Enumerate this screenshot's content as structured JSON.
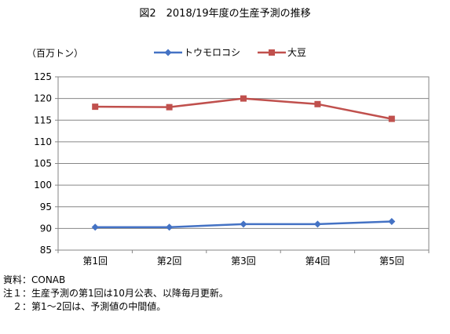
{
  "chart_data": {
    "type": "line",
    "title": "図2　2018/19年度の生産予測の推移",
    "ylabel": "（百万トン）",
    "xlabel": "",
    "categories": [
      "第1回",
      "第2回",
      "第3回",
      "第4回",
      "第5回"
    ],
    "ylim": [
      85,
      125
    ],
    "yticks": [
      85,
      90,
      95,
      100,
      105,
      110,
      115,
      120,
      125
    ],
    "grid": true,
    "legend_position": "top",
    "series": [
      {
        "name": "トウモロコシ",
        "values": [
          90.3,
          90.3,
          91.0,
          91.0,
          91.6
        ],
        "color": "#4472C4",
        "marker": "diamond"
      },
      {
        "name": "大豆",
        "values": [
          118.1,
          118.0,
          120.0,
          118.7,
          115.3
        ],
        "color": "#C0504D",
        "marker": "square"
      }
    ]
  },
  "notes": [
    "資料：CONAB",
    "注１：生産予測の第1回は10月公表、以降毎月更新。",
    "　２：第1～2回は、予測値の中間値。"
  ]
}
